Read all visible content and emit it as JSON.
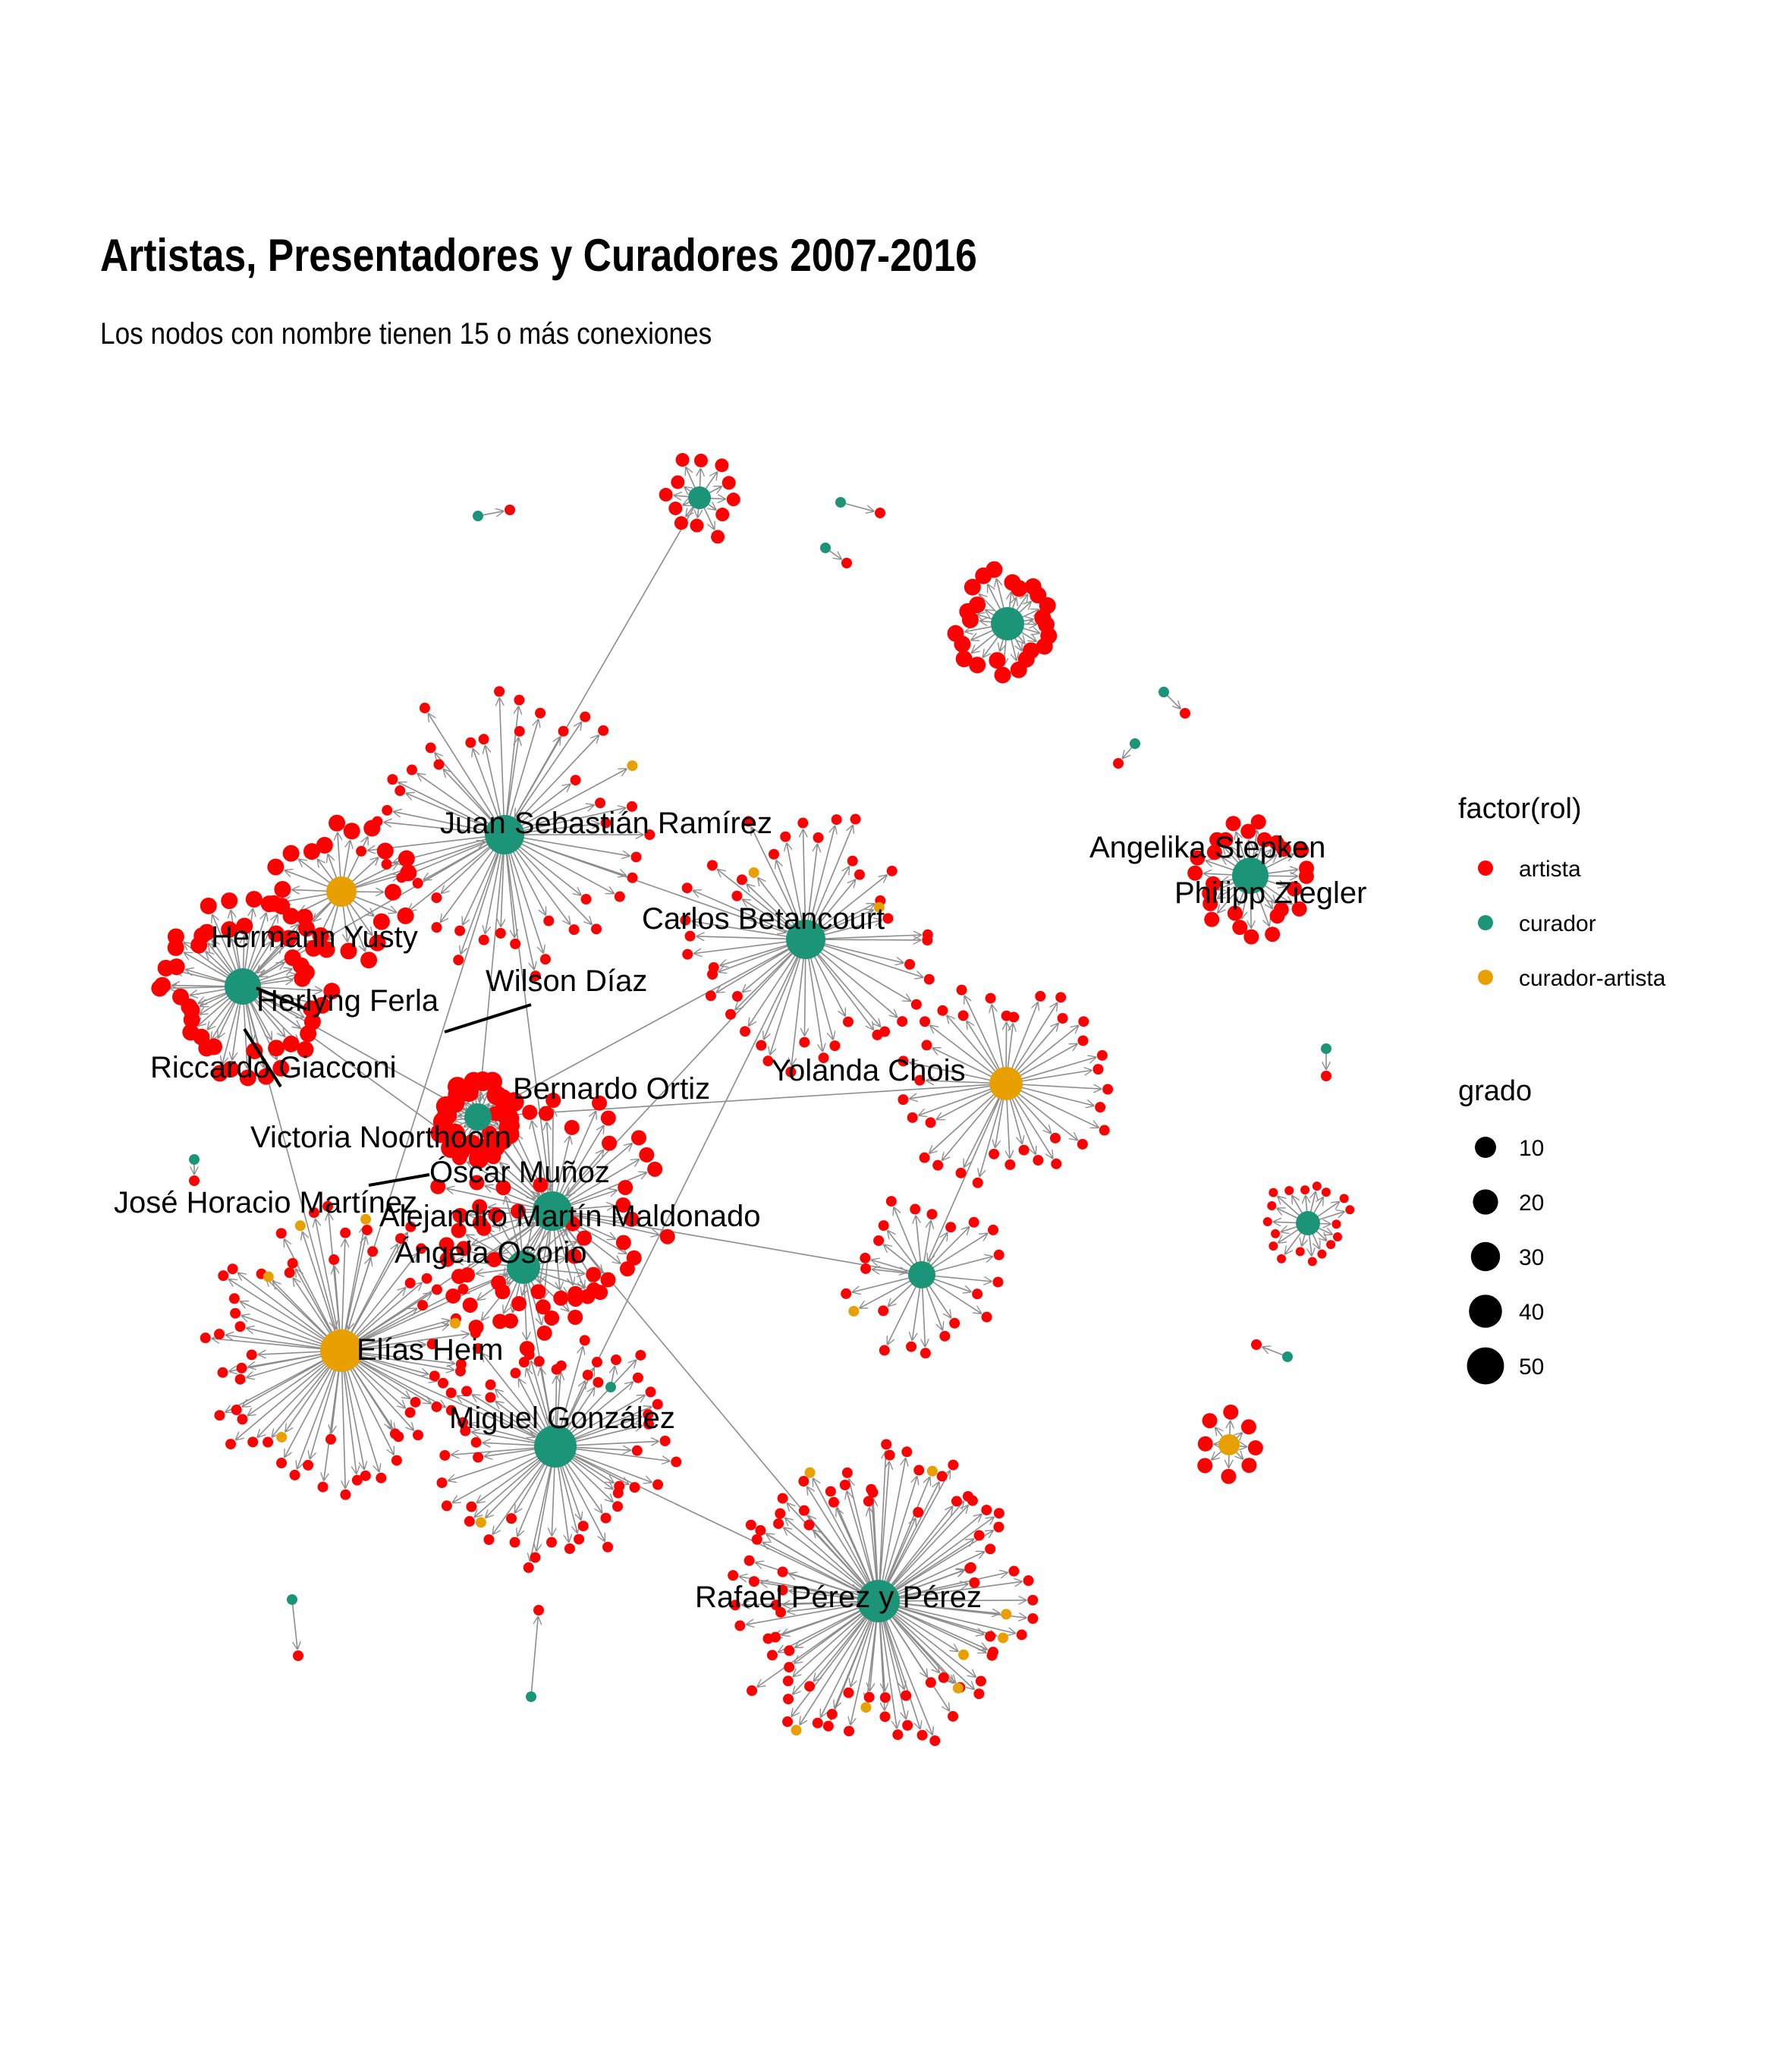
{
  "title": "Artistas, Presentadores y Curadores 2007-2016",
  "subtitle": "Los nodos con nombre tienen 15 o más conexiones",
  "colors": {
    "artista": "#ff0000",
    "curador": "#1b9477",
    "curador-artista": "#e8a000",
    "edge": "#8c8c8c",
    "background": "#ffffff"
  },
  "legend": {
    "color_title": "factor(rol)",
    "color_items": [
      {
        "label": "artista",
        "role": "artista"
      },
      {
        "label": "curador",
        "role": "curador"
      },
      {
        "label": "curador-artista",
        "role": "curador-artista"
      }
    ],
    "size_title": "grado",
    "size_items": [
      {
        "label": "10",
        "value": 10
      },
      {
        "label": "20",
        "value": 20
      },
      {
        "label": "30",
        "value": 30
      },
      {
        "label": "40",
        "value": 40
      },
      {
        "label": "50",
        "value": 50
      }
    ]
  },
  "named_nodes": [
    {
      "id": "juan",
      "label": "Juan Sebastián Ramírez",
      "role": "curador"
    },
    {
      "id": "carlos",
      "label": "Carlos Betancourt",
      "role": "curador"
    },
    {
      "id": "hermann",
      "label": "Hermann Yusty",
      "role": "curador-artista"
    },
    {
      "id": "herlyng",
      "label": "Herlyng Ferla",
      "role": "curador"
    },
    {
      "id": "riccardo",
      "label": "Riccardo Giacconi",
      "role": "artista"
    },
    {
      "id": "wilson",
      "label": "Wilson Díaz",
      "role": "curador-artista"
    },
    {
      "id": "bernardo",
      "label": "Bernardo Ortiz",
      "role": "curador"
    },
    {
      "id": "yolanda",
      "label": "Yolanda Chois",
      "role": "curador-artista"
    },
    {
      "id": "victoria",
      "label": "Victoria Noorthoorn",
      "role": "curador"
    },
    {
      "id": "oscar",
      "label": "Óscar Muñoz",
      "role": "artista"
    },
    {
      "id": "jose",
      "label": "José Horacio Martínez",
      "role": "artista"
    },
    {
      "id": "alejandro",
      "label": "Alejandro Martín Maldonado",
      "role": "curador"
    },
    {
      "id": "angela",
      "label": "Ángela Osorio",
      "role": "curador"
    },
    {
      "id": "elias",
      "label": "Elías Heim",
      "role": "curador-artista"
    },
    {
      "id": "miguel",
      "label": "Miguel González",
      "role": "curador"
    },
    {
      "id": "rafael",
      "label": "Rafael Pérez y Pérez",
      "role": "curador"
    },
    {
      "id": "angelika",
      "label": "Angelika Stepken",
      "role": "curador"
    },
    {
      "id": "philipp",
      "label": "Philipp Ziegler",
      "role": "curador"
    }
  ]
}
